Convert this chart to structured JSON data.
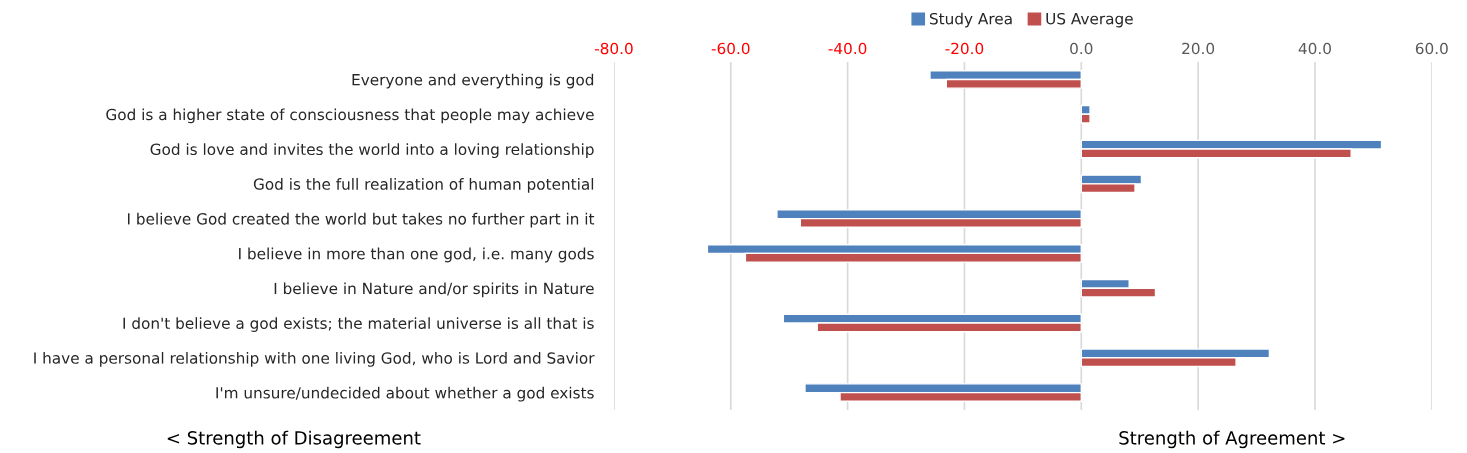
{
  "chart_data": {
    "type": "bar",
    "orientation": "horizontal",
    "categories": [
      "Everyone and everything is god",
      "God is a higher state of consciousness that people may achieve",
      "God is love and invites the world into a loving relationship",
      "God is the full realization of human potential",
      "I believe God created the world but takes no further part in it",
      "I believe in more than one god, i.e. many gods",
      "I believe in Nature and/or spirits in Nature",
      "I don't believe a god exists; the material universe is all that is",
      "I have a personal relationship with one living God, who is Lord and Savior",
      "I'm unsure/undecided about whether a god exists"
    ],
    "series": [
      {
        "name": "Study Area",
        "color": "#4f81bd",
        "values": [
          -25.9,
          1.5,
          51.4,
          10.3,
          -52.1,
          -64.0,
          8.2,
          -51.0,
          32.2,
          -47.3
        ]
      },
      {
        "name": "US Average",
        "color": "#c0504d",
        "values": [
          -23.1,
          1.5,
          46.2,
          9.2,
          -48.1,
          -57.5,
          12.7,
          -45.2,
          26.5,
          -41.3
        ]
      }
    ],
    "xlim": [
      -80,
      60
    ],
    "xticks": [
      {
        "value": -80,
        "label": "-80.0"
      },
      {
        "value": -60,
        "label": "-60.0"
      },
      {
        "value": -40,
        "label": "-40.0"
      },
      {
        "value": -20,
        "label": "-20.0"
      },
      {
        "value": 0,
        "label": "0.0"
      },
      {
        "value": 20,
        "label": "20.0"
      },
      {
        "value": 40,
        "label": "40.0"
      },
      {
        "value": 60,
        "label": "60.0"
      }
    ],
    "grid": "x",
    "legend": "top",
    "annotations": [
      "< Strength of Disagreement",
      "Strength of Agreement >"
    ]
  }
}
